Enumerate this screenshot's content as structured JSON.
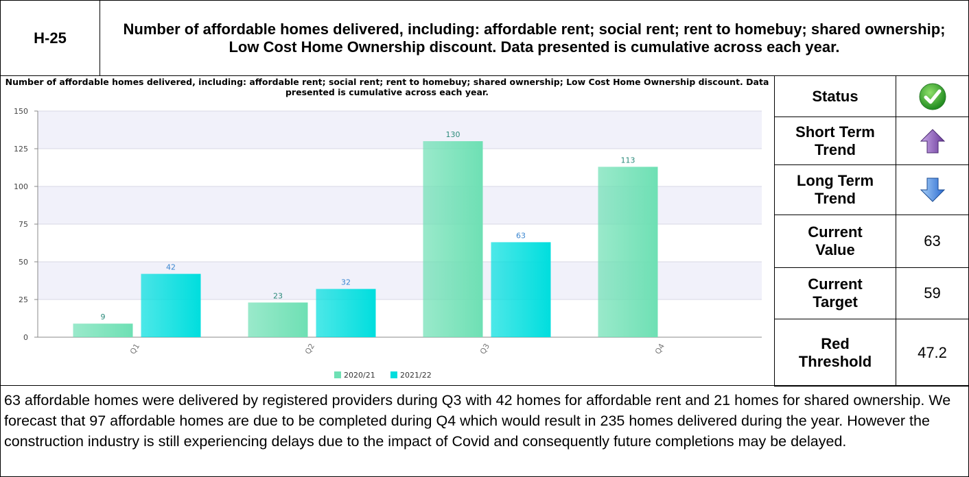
{
  "header": {
    "code": "H-25",
    "title": "Number of affordable homes delivered, including: affordable rent; social rent; rent to homebuy; shared ownership; Low Cost Home Ownership discount. Data presented is cumulative across each year."
  },
  "chart_data": {
    "type": "bar",
    "title": "Number of affordable homes delivered, including: affordable rent; social rent; rent to homebuy; shared ownership; Low Cost Home Ownership discount. Data presented is cumulative across each year.",
    "categories": [
      "Q1",
      "Q2",
      "Q3",
      "Q4"
    ],
    "series": [
      {
        "name": "2020/21",
        "color": "#6ee0b4",
        "values": [
          9,
          23,
          130,
          113
        ]
      },
      {
        "name": "2021/22",
        "color": "#00dede",
        "values": [
          42,
          32,
          63,
          null
        ]
      }
    ],
    "ylim": [
      0,
      150
    ],
    "yticks": [
      0,
      25,
      50,
      75,
      100,
      125,
      150
    ],
    "grid": true,
    "legend": "bottom"
  },
  "status_table": {
    "rows": [
      {
        "label": "Status"
      },
      {
        "label": "Short Term Trend"
      },
      {
        "label": "Long Term Trend"
      },
      {
        "label": "Current Value",
        "value": 63
      },
      {
        "label": "Current Target",
        "value": 59
      },
      {
        "label": "Red Threshold",
        "value": 47.2
      }
    ]
  },
  "commentary": "63 affordable homes were delivered by registered providers during Q3 with 42 homes for affordable rent and 21 homes for shared ownership. We forecast that 97 affordable homes are due to be completed during Q4 which would result in 235 homes delivered during the year. However the construction industry is still experiencing delays due to the impact of Covid and consequently future completions may be delayed."
}
